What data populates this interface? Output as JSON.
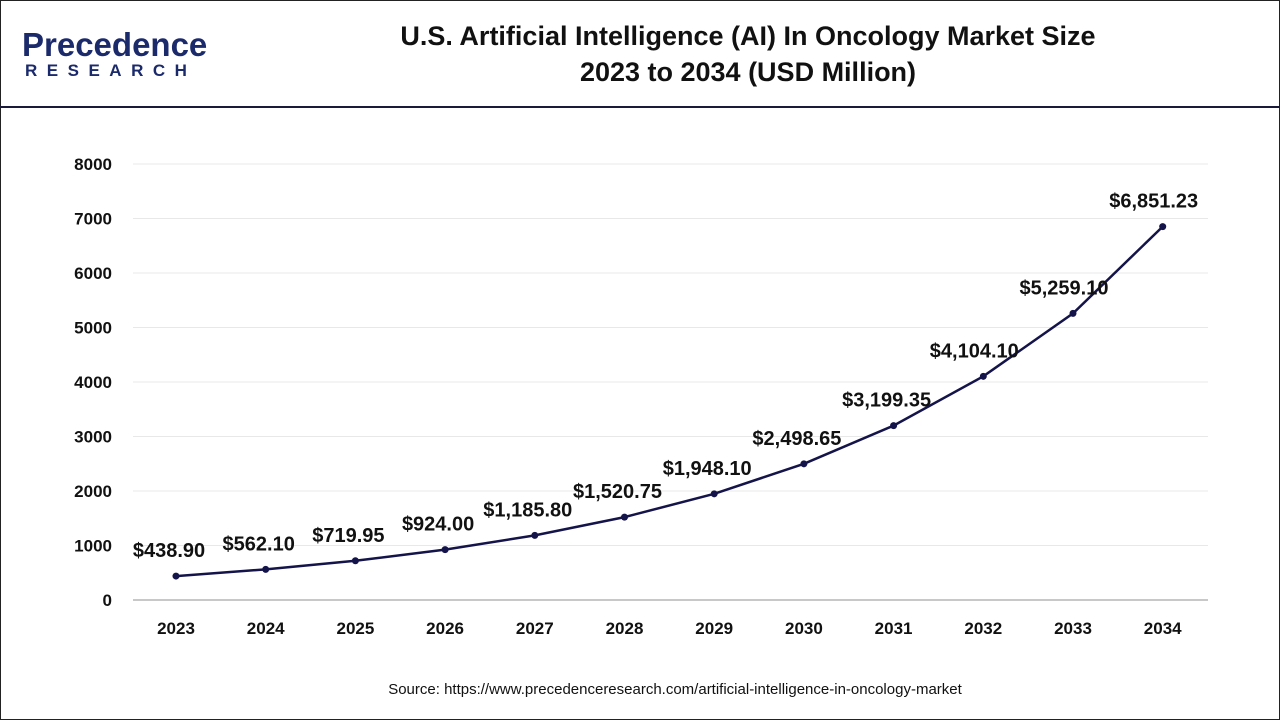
{
  "logo": {
    "line1": "Precedence",
    "line2": "RESEARCH"
  },
  "title_line1": "U.S. Artificial Intelligence (AI) In Oncology Market Size",
  "title_line2": "2023 to 2034 (USD Million)",
  "source": "Source: https://www.precedenceresearch.com/artificial-intelligence-in-oncology-market",
  "colors": {
    "line": "#14144a",
    "grid": "#e8e8e8",
    "axis": "#c8c8c8"
  },
  "chart_data": {
    "type": "line",
    "title": "U.S. Artificial Intelligence (AI) In Oncology Market Size 2023 to 2034 (USD Million)",
    "categories": [
      "2023",
      "2024",
      "2025",
      "2026",
      "2027",
      "2028",
      "2029",
      "2030",
      "2031",
      "2032",
      "2033",
      "2034"
    ],
    "values": [
      438.9,
      562.1,
      719.95,
      924.0,
      1185.8,
      1520.75,
      1948.1,
      2498.65,
      3199.35,
      4104.1,
      5259.1,
      6851.23
    ],
    "labels": [
      "$438.90",
      "$562.10",
      "$719.95",
      "$924.00",
      "$1,185.80",
      "$1,520.75",
      "$1,948.10",
      "$2,498.65",
      "$3,199.35",
      "$4,104.10",
      "$5,259.10",
      "$6,851.23"
    ],
    "yticks": [
      0,
      1000,
      2000,
      3000,
      4000,
      5000,
      6000,
      7000,
      8000
    ],
    "ylim": [
      0,
      8000
    ],
    "grid": true,
    "markers": true
  }
}
